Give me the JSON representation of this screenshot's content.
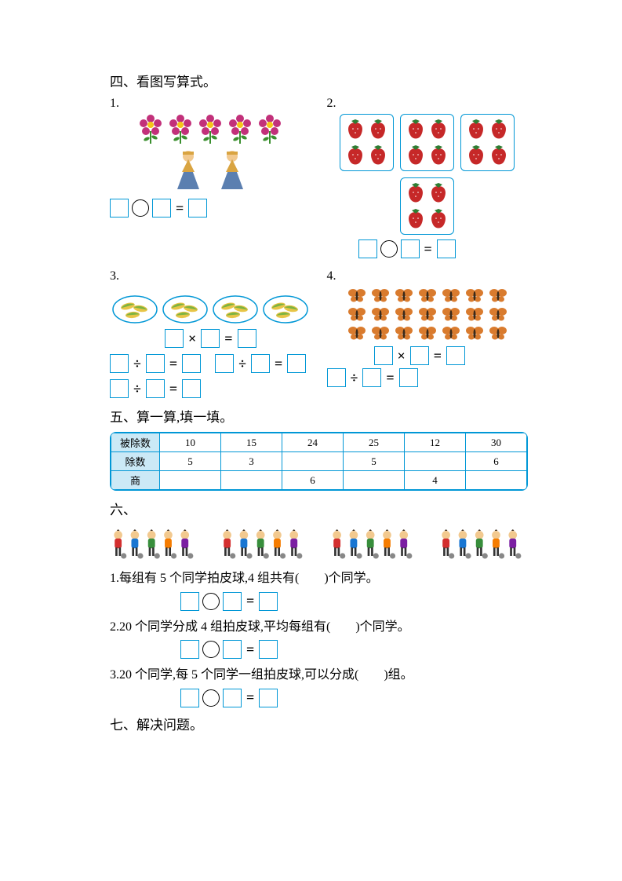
{
  "colors": {
    "boxBorder": "#0097d6",
    "thBg": "#cbe9f6",
    "flowerPetal": "#c2307a",
    "flowerCenter": "#f5c518",
    "leaf": "#3a8f2e",
    "dollBody": "#5b7fb0",
    "dollAccent": "#d9a441",
    "strawberry": "#c62828",
    "strawLeaf": "#2e7d32",
    "cornHusk": "#7cb342",
    "cornKernel": "#e8c547",
    "butterflyWing": "#d97b2e",
    "butterflyBody": "#3a2a1a"
  },
  "section4": {
    "title": "四、看图写算式。",
    "q1": {
      "num": "1.",
      "flowerCount": 5,
      "dollCount": 2
    },
    "q2": {
      "num": "2.",
      "groupCount": 4,
      "perGroup": 4
    },
    "q3": {
      "num": "3.",
      "groupCount": 4
    },
    "q4": {
      "num": "4.",
      "rows": 3,
      "cols": 7
    },
    "opTimes": "×",
    "opDiv": "÷",
    "eq": "="
  },
  "section5": {
    "title": "五、算一算,填一填。",
    "rowLabels": [
      "被除数",
      "除数",
      "商"
    ],
    "cols": [
      {
        "dividend": "10",
        "divisor": "5",
        "quotient": ""
      },
      {
        "dividend": "15",
        "divisor": "3",
        "quotient": ""
      },
      {
        "dividend": "24",
        "divisor": "",
        "quotient": "6"
      },
      {
        "dividend": "25",
        "divisor": "5",
        "quotient": ""
      },
      {
        "dividend": "12",
        "divisor": "",
        "quotient": "4"
      },
      {
        "dividend": "30",
        "divisor": "6",
        "quotient": ""
      }
    ]
  },
  "section6": {
    "title": "六、",
    "groups": 4,
    "q1": "1.每组有 5 个同学拍皮球,4 组共有(　　)个同学。",
    "q2": "2.20 个同学分成 4 组拍皮球,平均每组有(　　)个同学。",
    "q3": "3.20 个同学,每 5 个同学一组拍皮球,可以分成(　　)组。"
  },
  "section7": {
    "title": "七、解决问题。"
  }
}
